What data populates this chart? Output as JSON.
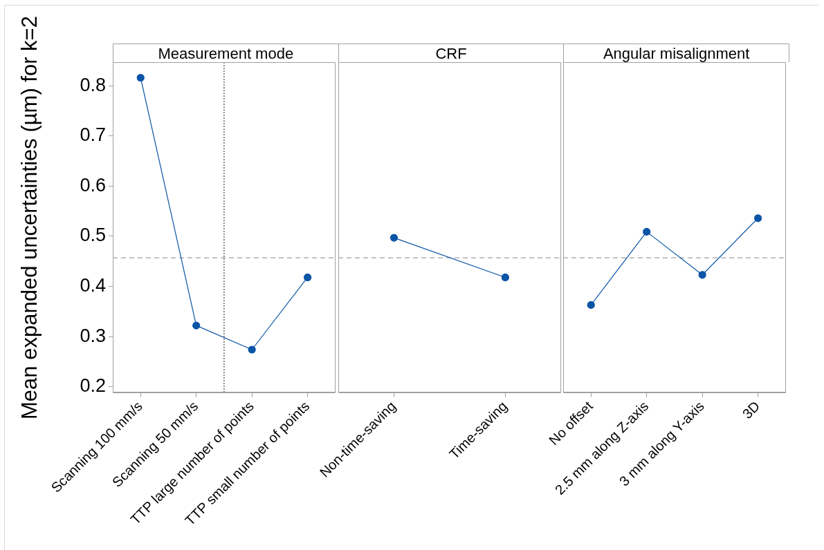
{
  "chart_data": [
    {
      "type": "line",
      "title": "Measurement mode",
      "ylabel": "Mean expanded uncertainties (µm) for k=2",
      "categories": [
        "Scanning 100 mm/s",
        "Scanning 50 mm/s",
        "TTP large number of points",
        "TTP small number of points"
      ],
      "series": [
        {
          "color": "#0b55a6",
          "values": [
            0.816,
            0.322,
            0.274,
            0.418
          ]
        }
      ],
      "ylim": [
        0.189,
        0.847
      ],
      "yticks": [
        0.2,
        0.3,
        0.4,
        0.5,
        0.6,
        0.7,
        0.8
      ],
      "marker": "circle",
      "ref_lines": [
        {
          "axis": "y",
          "value": 0.457,
          "color": "#a0a0a0",
          "line_style": "dashed"
        }
      ]
    },
    {
      "type": "line",
      "title": "CRF",
      "categories": [
        "Non-time-saving",
        "Time-saving"
      ],
      "series": [
        {
          "color": "#0b55a6",
          "values": [
            0.497,
            0.418
          ]
        }
      ],
      "ylim": [
        0.189,
        0.847
      ],
      "marker": "circle",
      "tick_labels": "x",
      "ref_lines": [
        {
          "axis": "y",
          "value": 0.457,
          "color": "#a0a0a0",
          "line_style": "dashed"
        }
      ]
    },
    {
      "type": "line",
      "title": "Angular misalignment",
      "categories": [
        "No offset",
        "2.5 mm along Z-axis",
        "3 mm along Y-axis",
        "3D"
      ],
      "series": [
        {
          "color": "#0b55a6",
          "values": [
            0.363,
            0.509,
            0.423,
            0.536
          ]
        }
      ],
      "ylim": [
        0.189,
        0.847
      ],
      "marker": "circle",
      "tick_labels": "x",
      "ref_lines": [
        {
          "axis": "y",
          "value": 0.457,
          "color": "#a0a0a0",
          "line_style": "dashed"
        }
      ]
    }
  ]
}
